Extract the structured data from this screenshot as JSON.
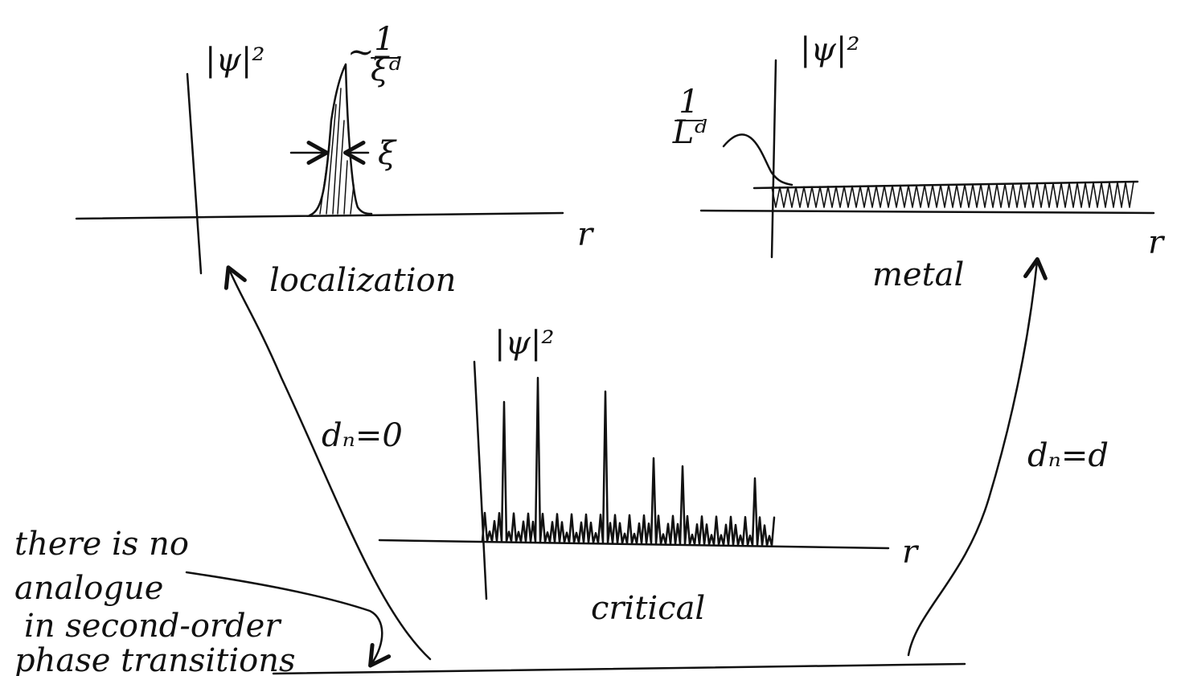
{
  "panels": [
    {
      "y_label": "|ψ|²",
      "x_label": "r",
      "caption": "localization",
      "peak_label": {
        "prefix": "~",
        "numerator": "1",
        "denominator": "ξᵈ"
      },
      "width_label": "ξ"
    },
    {
      "y_label": "|ψ|²",
      "x_label": "r",
      "caption": "metal",
      "level_label": {
        "numerator": "1",
        "denominator": "Lᵈ"
      }
    },
    {
      "y_label": "|ψ|²",
      "x_label": "r",
      "caption": "critical"
    }
  ],
  "arrows": [
    {
      "label": "dₙ=0"
    },
    {
      "label": "dₙ=d"
    }
  ],
  "note": [
    "there is no",
    "analogue",
    "in second-order",
    "phase transitions"
  ]
}
